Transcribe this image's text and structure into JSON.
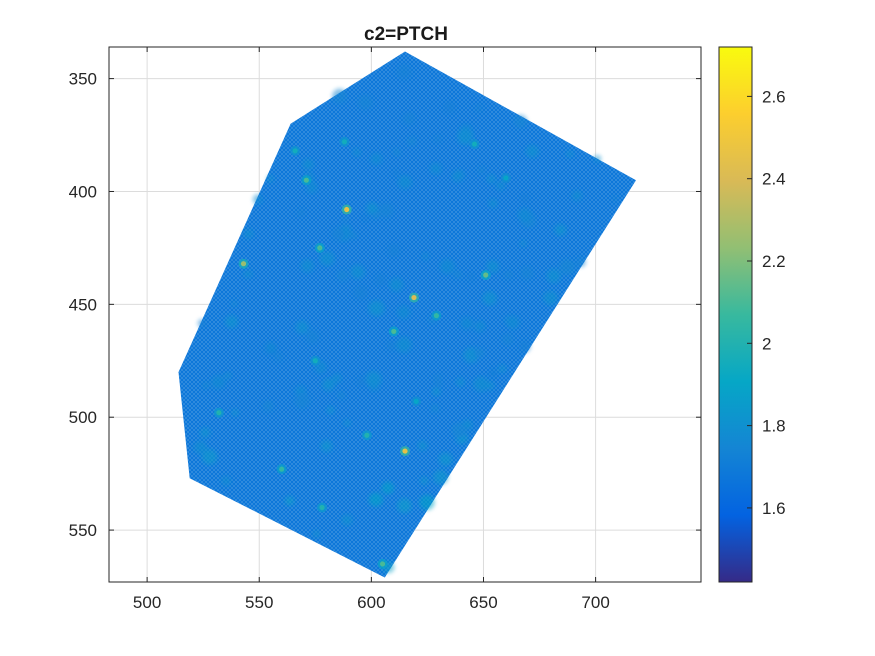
{
  "chart_data": {
    "type": "heatmap",
    "title": "c2=PTCH",
    "xlabel": "",
    "ylabel": "",
    "xlim": [
      483,
      747
    ],
    "ylim": [
      336,
      573
    ],
    "y_reversed": true,
    "x_ticks": [
      500,
      550,
      600,
      650,
      700
    ],
    "y_ticks": [
      350,
      400,
      450,
      500,
      550
    ],
    "grid": true,
    "colormap": "parula",
    "colorbar": {
      "range": [
        1.42,
        2.72
      ],
      "ticks": [
        1.6,
        1.8,
        2,
        2.2,
        2.4,
        2.6
      ],
      "tick_labels": [
        "1.6",
        "1.8",
        "2",
        "2.2",
        "2.4",
        "2.6"
      ]
    },
    "region_outline": [
      [
        615,
        338
      ],
      [
        718,
        395
      ],
      [
        606,
        571
      ],
      [
        519,
        527
      ],
      [
        514,
        480
      ],
      [
        564,
        370
      ]
    ],
    "background_value": 1.68,
    "hotspots": [
      {
        "x": 589,
        "y": 408,
        "value": 2.45
      },
      {
        "x": 543,
        "y": 432,
        "value": 2.25
      },
      {
        "x": 571,
        "y": 395,
        "value": 2.1
      },
      {
        "x": 577,
        "y": 425,
        "value": 2.1
      },
      {
        "x": 619,
        "y": 447,
        "value": 2.4
      },
      {
        "x": 651,
        "y": 437,
        "value": 2.15
      },
      {
        "x": 629,
        "y": 455,
        "value": 2.05
      },
      {
        "x": 610,
        "y": 462,
        "value": 2.1
      },
      {
        "x": 615,
        "y": 515,
        "value": 2.45
      },
      {
        "x": 598,
        "y": 508,
        "value": 2.0
      },
      {
        "x": 605,
        "y": 565,
        "value": 2.1
      },
      {
        "x": 560,
        "y": 523,
        "value": 2.05
      },
      {
        "x": 578,
        "y": 540,
        "value": 2.0
      },
      {
        "x": 532,
        "y": 498,
        "value": 2.0
      },
      {
        "x": 566,
        "y": 382,
        "value": 1.95
      },
      {
        "x": 588,
        "y": 378,
        "value": 1.95
      },
      {
        "x": 646,
        "y": 379,
        "value": 1.95
      },
      {
        "x": 660,
        "y": 394,
        "value": 1.9
      },
      {
        "x": 620,
        "y": 493,
        "value": 1.9
      },
      {
        "x": 575,
        "y": 475,
        "value": 1.95
      }
    ]
  }
}
